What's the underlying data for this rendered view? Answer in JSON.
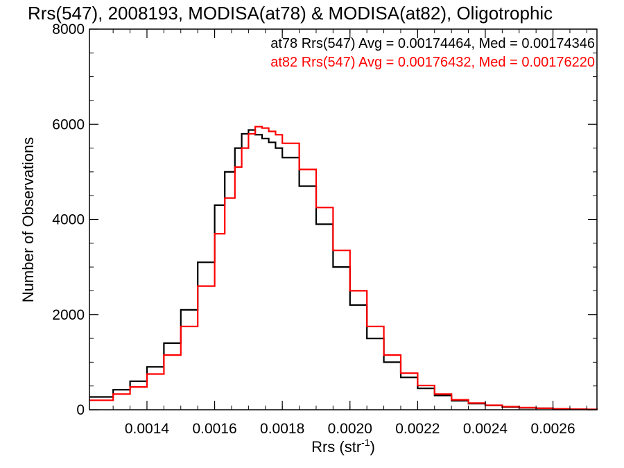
{
  "chart_data": {
    "type": "line",
    "title": "Rrs(547), 2008193, MODISA(at78) & MODISA(at82), Oligotrophic",
    "xlabel": "Rrs (str",
    "xlabel_sup": "-1",
    "xlabel_end": ")",
    "ylabel": "Number of Observations",
    "xlim": [
      0.00123,
      0.00273
    ],
    "ylim": [
      0,
      8000
    ],
    "xticks": [
      0.0014,
      0.0016,
      0.0018,
      0.002,
      0.0022,
      0.0024,
      0.0026
    ],
    "xtick_labels": [
      "0.0014",
      "0.0016",
      "0.0018",
      "0.0020",
      "0.0022",
      "0.0024",
      "0.0026"
    ],
    "yticks": [
      0,
      2000,
      4000,
      6000,
      8000
    ],
    "ytick_labels": [
      "0",
      "2000",
      "4000",
      "6000",
      "8000"
    ],
    "grid": false,
    "annotations": [
      {
        "text": "at78 Rrs(547) Avg = 0.00174464, Med = 0.00174346",
        "color": "#000000"
      },
      {
        "text": "at82 Rrs(547) Avg = 0.00176432, Med = 0.00176220",
        "color": "#ff0000"
      }
    ],
    "series": [
      {
        "color": "#000000",
        "x": [
          0.00123,
          0.0013,
          0.00135,
          0.0014,
          0.00145,
          0.0015,
          0.00155,
          0.0016,
          0.00163,
          0.00166,
          0.00168,
          0.0017,
          0.00172,
          0.00174,
          0.00176,
          0.00178,
          0.0018,
          0.00185,
          0.0019,
          0.00195,
          0.002,
          0.00205,
          0.0021,
          0.00215,
          0.0022,
          0.00225,
          0.0023,
          0.00235,
          0.0024,
          0.00245,
          0.0025,
          0.00255,
          0.0026,
          0.00265,
          0.0027,
          0.00273
        ],
        "values": [
          270,
          420,
          600,
          900,
          1400,
          2100,
          3100,
          4300,
          5000,
          5500,
          5800,
          5880,
          5780,
          5700,
          5620,
          5500,
          5300,
          4700,
          3900,
          3000,
          2200,
          1500,
          1000,
          680,
          450,
          300,
          190,
          130,
          90,
          60,
          40,
          30,
          20,
          12,
          8,
          5
        ]
      },
      {
        "color": "#ff0000",
        "x": [
          0.00123,
          0.0013,
          0.00135,
          0.0014,
          0.00145,
          0.0015,
          0.00155,
          0.0016,
          0.00163,
          0.00166,
          0.00168,
          0.0017,
          0.00172,
          0.00174,
          0.00176,
          0.00178,
          0.0018,
          0.00185,
          0.0019,
          0.00195,
          0.002,
          0.00205,
          0.0021,
          0.00215,
          0.0022,
          0.00225,
          0.0023,
          0.00235,
          0.0024,
          0.00245,
          0.0025,
          0.00255,
          0.0026,
          0.00265,
          0.0027,
          0.00273
        ],
        "values": [
          200,
          330,
          480,
          750,
          1150,
          1750,
          2600,
          3700,
          4450,
          5100,
          5500,
          5800,
          5950,
          5920,
          5850,
          5780,
          5600,
          5050,
          4250,
          3350,
          2500,
          1750,
          1150,
          770,
          510,
          330,
          210,
          140,
          95,
          65,
          45,
          30,
          20,
          12,
          8,
          5
        ]
      }
    ]
  }
}
